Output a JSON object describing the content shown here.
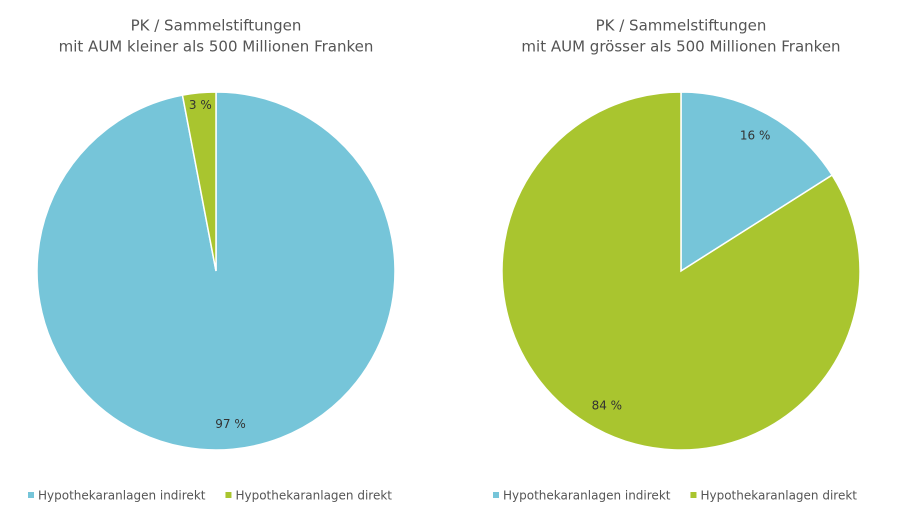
{
  "chart_data": [
    {
      "type": "pie",
      "title": "PK / Sammelstiftungen",
      "subtitle": "mit AUM kleiner als 500 Millionen Franken",
      "categories": [
        "Hypothekaranlagen indirekt",
        "Hypothekaranlagen direkt"
      ],
      "values": [
        97,
        3
      ],
      "value_labels": [
        "97 %",
        "3 %"
      ],
      "colors": [
        "#76c5d9",
        "#a9c52f"
      ]
    },
    {
      "type": "pie",
      "title": "PK / Sammelstiftungen",
      "subtitle": "mit AUM grösser als 500 Millionen Franken",
      "categories": [
        "Hypothekaranlagen indirekt",
        "Hypothekaranlagen direkt"
      ],
      "values": [
        16,
        84
      ],
      "value_labels": [
        "16 %",
        "84 %"
      ],
      "colors": [
        "#76c5d9",
        "#a9c52f"
      ]
    }
  ]
}
